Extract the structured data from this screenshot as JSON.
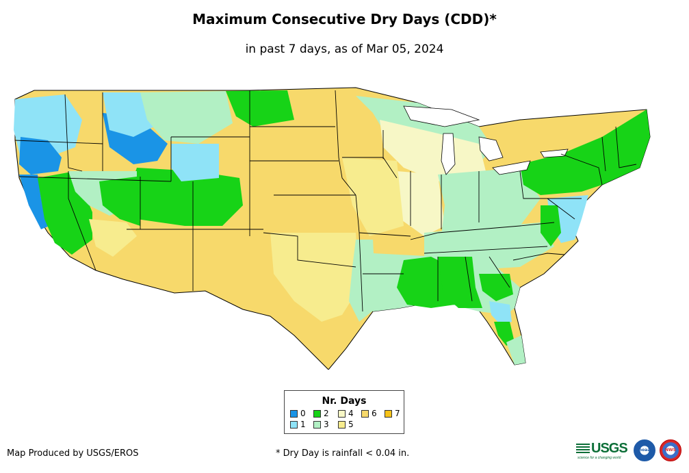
{
  "title": "Maximum Consecutive Dry Days (CDD)*",
  "subtitle": "in past 7 days, as of Mar 05, 2024",
  "legend": {
    "title": "Nr. Days",
    "items": [
      {
        "label": "0",
        "color": "#1a94e6"
      },
      {
        "label": "1",
        "color": "#8fe3f7"
      },
      {
        "label": "2",
        "color": "#17d317"
      },
      {
        "label": "3",
        "color": "#b2f0c4"
      },
      {
        "label": "4",
        "color": "#f7f7c6"
      },
      {
        "label": "5",
        "color": "#f7ec8e"
      },
      {
        "label": "6",
        "color": "#f7d96b"
      },
      {
        "label": "7",
        "color": "#f7c318"
      }
    ]
  },
  "footer": {
    "producer": "Map Produced by USGS/EROS",
    "note": "* Dry Day is rainfall < 0.04 in."
  },
  "logos": {
    "usgs": "USGS",
    "usgs_tagline": "science for a changing world",
    "noaa": "noaa",
    "nws": "NWS"
  },
  "map_colors": {
    "border": "#000000",
    "ocean": "#ffffff",
    "great_lakes": "#ffffff"
  }
}
